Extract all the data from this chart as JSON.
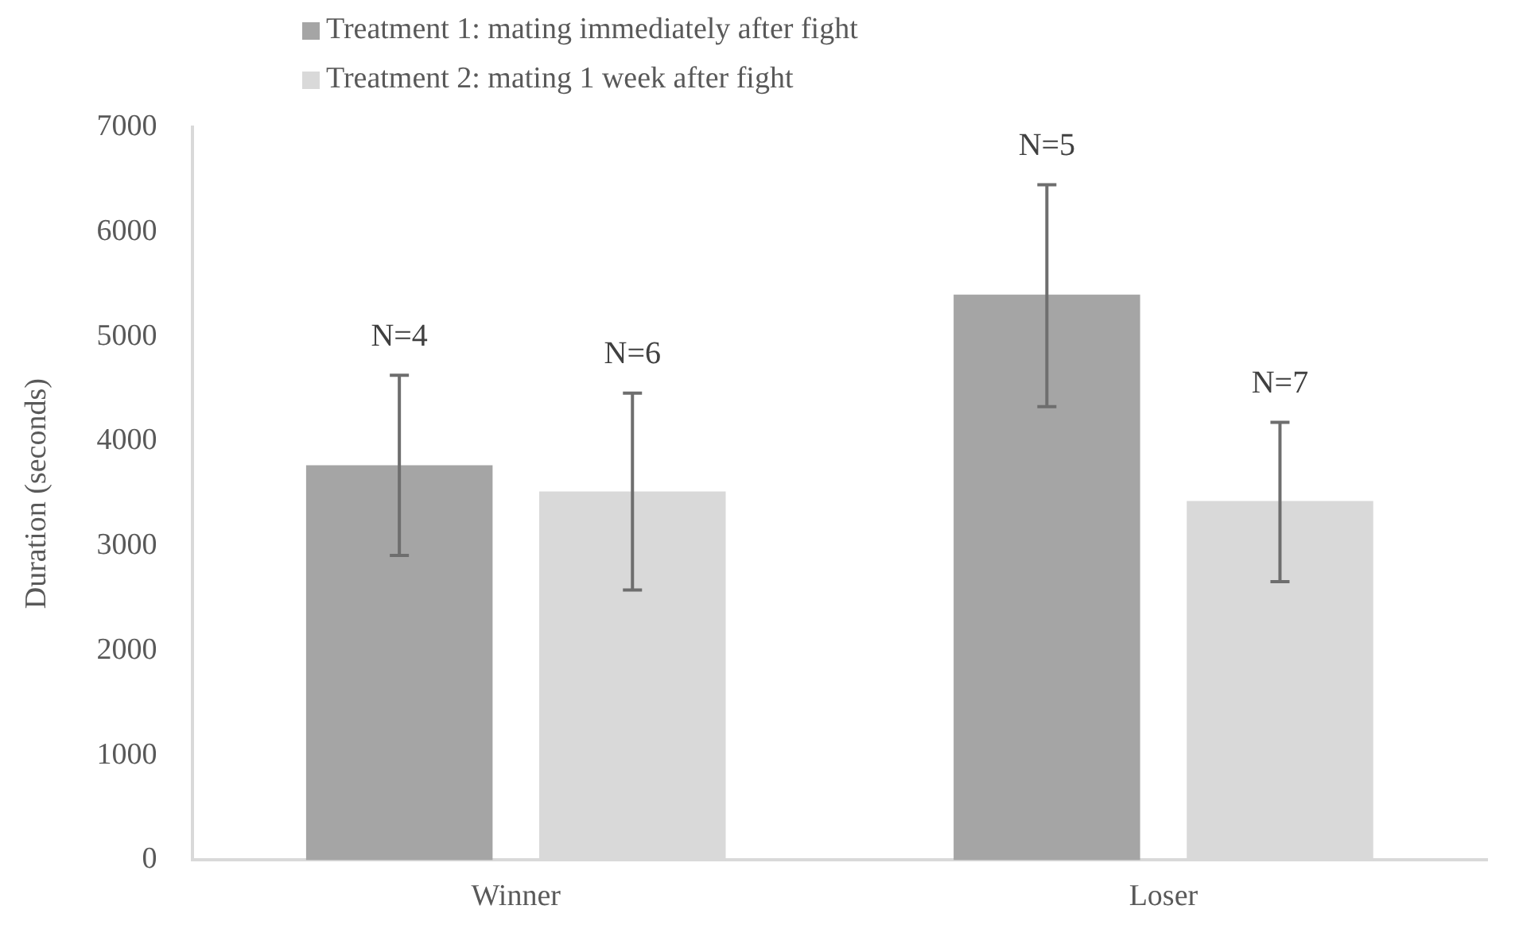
{
  "chart_data": {
    "type": "bar",
    "ylabel": "Duration (seconds)",
    "categories": [
      "Winner",
      "Loser"
    ],
    "series": [
      {
        "name": "Treatment 1: mating immediately after fight",
        "color": "#a5a5a5",
        "values": [
          3770,
          5400
        ],
        "errors": [
          [
            2910,
            4630
          ],
          [
            4330,
            6450
          ]
        ]
      },
      {
        "name": "Treatment 2: mating 1 week after fight",
        "color": "#d9d9d9",
        "values": [
          3520,
          3430
        ],
        "errors": [
          [
            2580,
            4460
          ],
          [
            2660,
            4180
          ]
        ]
      }
    ],
    "ylim": [
      0,
      7000
    ],
    "yticks": [
      0,
      1000,
      2000,
      3000,
      4000,
      5000,
      6000,
      7000
    ],
    "annotations": [
      "N=4",
      "N=5",
      "N=6",
      "N=7"
    ],
    "grid": false,
    "legend": "top"
  }
}
